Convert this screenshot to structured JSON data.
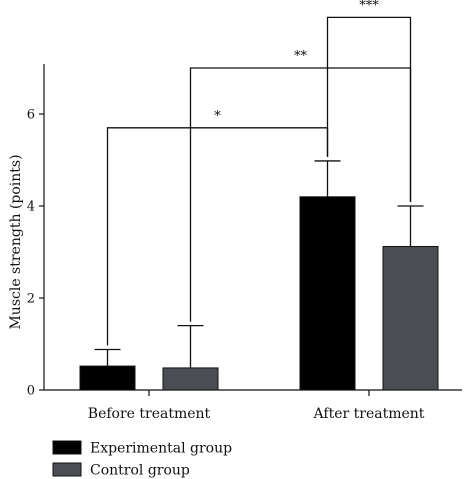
{
  "chart_data": {
    "type": "bar",
    "categories": [
      "Before treatment",
      "After treatment"
    ],
    "series": [
      {
        "name": "Experimental group",
        "values": [
          0.52,
          4.2
        ],
        "errors": [
          0.36,
          0.78
        ],
        "color": "#000000"
      },
      {
        "name": "Control group",
        "values": [
          0.48,
          3.12
        ],
        "errors": [
          0.92,
          0.88
        ],
        "color": "#4a4d52"
      }
    ],
    "ylabel": "Muscle strength (points)",
    "xlabel": "",
    "ylim": [
      0,
      7
    ],
    "yticks": [
      0,
      2,
      4,
      6
    ],
    "legend_position": "bottom-left",
    "grid": false,
    "annotations": [
      {
        "label": "*",
        "from": "Experimental group | Before treatment",
        "to": "Experimental group | After treatment",
        "y": 5.7
      },
      {
        "label": "**",
        "from": "Control group | Before treatment",
        "to": "Control group | After treatment",
        "y": 7.0
      },
      {
        "label": "***",
        "from": "Experimental group | After treatment",
        "to": "Control group | After treatment",
        "y": 8.1
      }
    ]
  }
}
